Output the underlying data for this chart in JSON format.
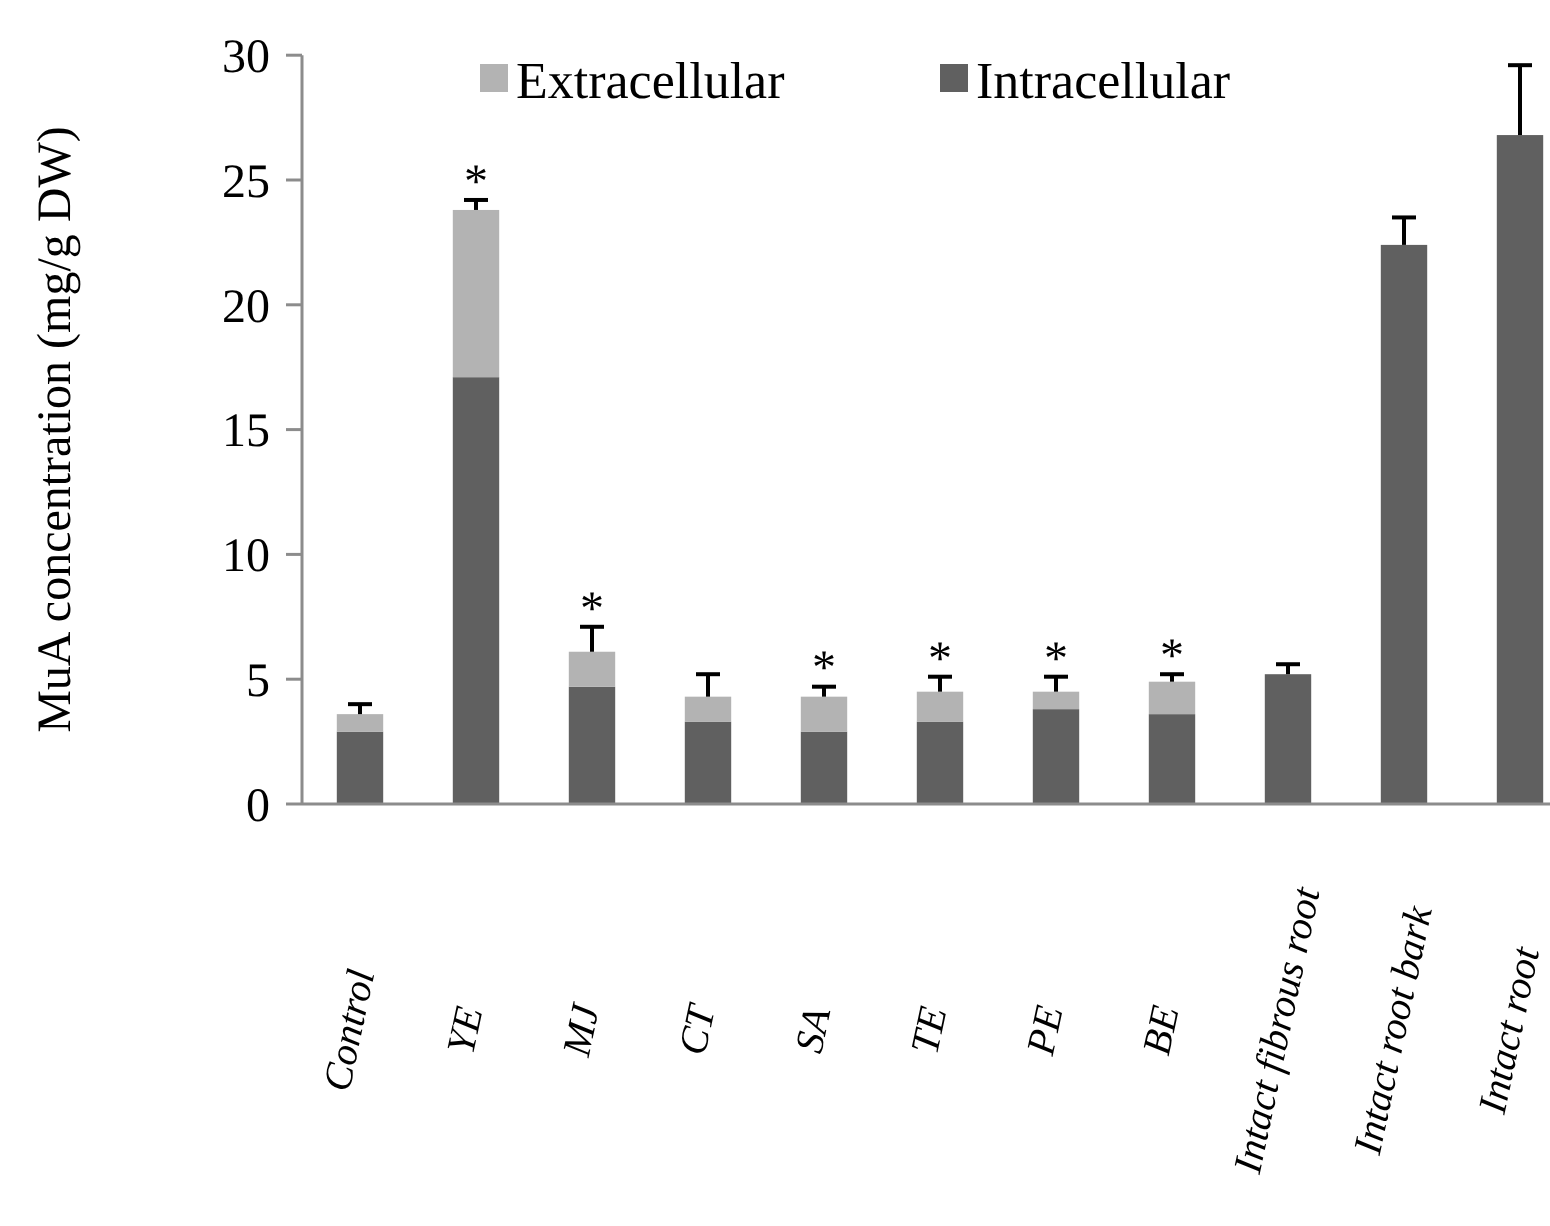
{
  "chart_data": {
    "type": "bar",
    "stacked": true,
    "ylabel": "MuA concentration (mg/g DW)",
    "categories": [
      "Control",
      "YE",
      "MJ",
      "CT",
      "SA",
      "TE",
      "PE",
      "BE",
      "Intact fibrous root",
      "Intact root bark",
      "Intact root"
    ],
    "series": [
      {
        "name": "Intracellular",
        "color": "#606060",
        "values": [
          2.9,
          17.1,
          4.7,
          3.3,
          2.9,
          3.3,
          3.8,
          3.6,
          5.2,
          22.4,
          26.8
        ],
        "errors": [
          null,
          null,
          null,
          null,
          null,
          null,
          null,
          null,
          0.4,
          1.1,
          2.8
        ]
      },
      {
        "name": "Extracellular",
        "color": "#b3b3b3",
        "values": [
          0.7,
          6.7,
          1.4,
          1.0,
          1.4,
          1.2,
          0.7,
          1.3,
          null,
          null,
          null
        ],
        "errors": [
          0.4,
          0.4,
          1.0,
          0.9,
          0.4,
          0.6,
          0.6,
          0.3,
          null,
          null,
          null
        ]
      }
    ],
    "ylim": [
      0,
      30
    ],
    "yticks": [
      0,
      5,
      10,
      15,
      20,
      25,
      30
    ],
    "grid": false,
    "legend": "top",
    "annotations": [
      {
        "text": "*",
        "x": "YE",
        "y": 24.2
      },
      {
        "text": "*",
        "x": "MJ",
        "y": 7.1
      },
      {
        "text": "*",
        "x": "SA",
        "y": 4.7
      },
      {
        "text": "*",
        "x": "TE",
        "y": 5.1
      },
      {
        "text": "*",
        "x": "PE",
        "y": 5.1
      },
      {
        "text": "*",
        "x": "BE",
        "y": 5.2
      }
    ]
  }
}
